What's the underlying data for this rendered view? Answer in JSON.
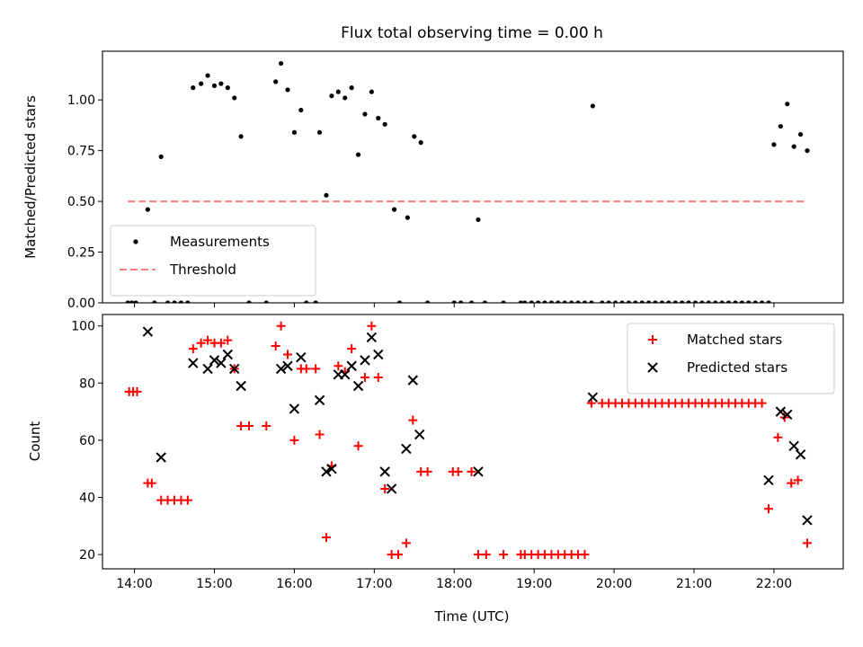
{
  "chart_data": [
    {
      "type": "scatter",
      "title": "Flux total observing time = 0.00 h",
      "xlabel": "",
      "ylabel": "Matched/Predicted stars",
      "xlim": [
        "13:36",
        "22:52"
      ],
      "ylim": [
        0,
        1.24
      ],
      "x_ticks": [
        "14:00",
        "15:00",
        "16:00",
        "17:00",
        "18:00",
        "19:00",
        "20:00",
        "21:00",
        "22:00"
      ],
      "x_ticklabels_shown": false,
      "y_ticks": [
        "0.00",
        "0.25",
        "0.50",
        "0.75",
        "1.00"
      ],
      "grid": false,
      "legend_position": "lower-left",
      "series": [
        {
          "name": "Measurements",
          "marker": "dot",
          "color": "#000000",
          "points": [
            [
              "13:55",
              0
            ],
            [
              "13:58",
              0
            ],
            [
              "14:01",
              0
            ],
            [
              "14:10",
              0.46
            ],
            [
              "14:15",
              0
            ],
            [
              "14:20",
              0.72
            ],
            [
              "14:25",
              0
            ],
            [
              "14:30",
              0
            ],
            [
              "14:35",
              0
            ],
            [
              "14:40",
              0
            ],
            [
              "14:44",
              1.06
            ],
            [
              "14:50",
              1.08
            ],
            [
              "14:55",
              1.12
            ],
            [
              "15:00",
              1.07
            ],
            [
              "15:05",
              1.08
            ],
            [
              "15:10",
              1.06
            ],
            [
              "15:15",
              1.01
            ],
            [
              "15:20",
              0.82
            ],
            [
              "15:26",
              0
            ],
            [
              "15:39",
              0
            ],
            [
              "15:46",
              1.09
            ],
            [
              "15:50",
              1.18
            ],
            [
              "15:55",
              1.05
            ],
            [
              "16:00",
              0.84
            ],
            [
              "16:05",
              0.95
            ],
            [
              "16:09",
              0
            ],
            [
              "16:16",
              0
            ],
            [
              "16:19",
              0.84
            ],
            [
              "16:24",
              0.53
            ],
            [
              "16:28",
              1.02
            ],
            [
              "16:33",
              1.04
            ],
            [
              "16:38",
              1.01
            ],
            [
              "16:43",
              1.06
            ],
            [
              "16:48",
              0.73
            ],
            [
              "16:53",
              0.93
            ],
            [
              "16:58",
              1.04
            ],
            [
              "17:03",
              0.91
            ],
            [
              "17:08",
              0.88
            ],
            [
              "17:15",
              0.46
            ],
            [
              "17:19",
              0
            ],
            [
              "17:25",
              0.42
            ],
            [
              "17:30",
              0.82
            ],
            [
              "17:35",
              0.79
            ],
            [
              "17:40",
              0
            ],
            [
              "18:00",
              0
            ],
            [
              "18:05",
              0
            ],
            [
              "18:13",
              0
            ],
            [
              "18:18",
              0.41
            ],
            [
              "18:23",
              0
            ],
            [
              "18:37",
              0
            ],
            [
              "18:50",
              0
            ],
            [
              "18:53",
              0
            ],
            [
              "18:58",
              0
            ],
            [
              "19:03",
              0
            ],
            [
              "19:08",
              0
            ],
            [
              "19:13",
              0
            ],
            [
              "19:18",
              0
            ],
            [
              "19:23",
              0
            ],
            [
              "19:28",
              0
            ],
            [
              "19:33",
              0
            ],
            [
              "19:38",
              0
            ],
            [
              "19:43",
              0
            ],
            [
              "19:44",
              0.97
            ],
            [
              "19:51",
              0
            ],
            [
              "19:56",
              0
            ],
            [
              "20:01",
              0
            ],
            [
              "20:06",
              0
            ],
            [
              "20:11",
              0
            ],
            [
              "20:16",
              0
            ],
            [
              "20:21",
              0
            ],
            [
              "20:26",
              0
            ],
            [
              "20:31",
              0
            ],
            [
              "20:36",
              0
            ],
            [
              "20:41",
              0
            ],
            [
              "20:46",
              0
            ],
            [
              "20:51",
              0
            ],
            [
              "20:56",
              0
            ],
            [
              "21:01",
              0
            ],
            [
              "21:06",
              0
            ],
            [
              "21:11",
              0
            ],
            [
              "21:16",
              0
            ],
            [
              "21:21",
              0
            ],
            [
              "21:26",
              0
            ],
            [
              "21:31",
              0
            ],
            [
              "21:36",
              0
            ],
            [
              "21:41",
              0
            ],
            [
              "21:46",
              0
            ],
            [
              "21:51",
              0
            ],
            [
              "21:56",
              0
            ],
            [
              "22:00",
              0.78
            ],
            [
              "22:05",
              0.87
            ],
            [
              "22:10",
              0.98
            ],
            [
              "22:15",
              0.77
            ],
            [
              "22:20",
              0.83
            ],
            [
              "22:25",
              0.75
            ]
          ]
        },
        {
          "name": "Threshold",
          "style": "dashed-line",
          "color": "#ff7f7f",
          "points": [
            [
              "13:55",
              0.5
            ],
            [
              "22:25",
              0.5
            ]
          ]
        }
      ]
    },
    {
      "type": "scatter",
      "title": "",
      "xlabel": "Time (UTC)",
      "ylabel": "Count",
      "xlim": [
        "13:36",
        "22:52"
      ],
      "ylim": [
        15,
        104
      ],
      "x_ticks": [
        "14:00",
        "15:00",
        "16:00",
        "17:00",
        "18:00",
        "19:00",
        "20:00",
        "21:00",
        "22:00"
      ],
      "y_ticks": [
        "20",
        "40",
        "60",
        "80",
        "100"
      ],
      "grid": false,
      "legend_position": "upper-right",
      "series": [
        {
          "name": "Matched stars",
          "marker": "plus",
          "color": "#ff0000",
          "points": [
            [
              "13:56",
              77
            ],
            [
              "13:59",
              77
            ],
            [
              "14:02",
              77
            ],
            [
              "14:10",
              45
            ],
            [
              "14:13",
              45
            ],
            [
              "14:20",
              39
            ],
            [
              "14:25",
              39
            ],
            [
              "14:30",
              39
            ],
            [
              "14:35",
              39
            ],
            [
              "14:40",
              39
            ],
            [
              "14:44",
              92
            ],
            [
              "14:50",
              94
            ],
            [
              "14:55",
              95
            ],
            [
              "15:00",
              94
            ],
            [
              "15:05",
              94
            ],
            [
              "15:10",
              95
            ],
            [
              "15:15",
              85
            ],
            [
              "15:20",
              65
            ],
            [
              "15:26",
              65
            ],
            [
              "15:39",
              65
            ],
            [
              "15:46",
              93
            ],
            [
              "15:50",
              100
            ],
            [
              "15:55",
              90
            ],
            [
              "16:00",
              60
            ],
            [
              "16:05",
              85
            ],
            [
              "16:09",
              85
            ],
            [
              "16:16",
              85
            ],
            [
              "16:19",
              62
            ],
            [
              "16:24",
              26
            ],
            [
              "16:28",
              51
            ],
            [
              "16:33",
              86
            ],
            [
              "16:38",
              84
            ],
            [
              "16:43",
              92
            ],
            [
              "16:48",
              58
            ],
            [
              "16:53",
              82
            ],
            [
              "16:58",
              100
            ],
            [
              "17:03",
              82
            ],
            [
              "17:08",
              43
            ],
            [
              "17:13",
              20
            ],
            [
              "17:18",
              20
            ],
            [
              "17:24",
              24
            ],
            [
              "17:29",
              67
            ],
            [
              "17:35",
              49
            ],
            [
              "17:40",
              49
            ],
            [
              "17:59",
              49
            ],
            [
              "18:03",
              49
            ],
            [
              "18:13",
              49
            ],
            [
              "18:18",
              20
            ],
            [
              "18:24",
              20
            ],
            [
              "18:37",
              20
            ],
            [
              "18:50",
              20
            ],
            [
              "18:53",
              20
            ],
            [
              "18:58",
              20
            ],
            [
              "19:03",
              20
            ],
            [
              "19:08",
              20
            ],
            [
              "19:13",
              20
            ],
            [
              "19:18",
              20
            ],
            [
              "19:23",
              20
            ],
            [
              "19:28",
              20
            ],
            [
              "19:33",
              20
            ],
            [
              "19:38",
              20
            ],
            [
              "19:43",
              73
            ],
            [
              "19:51",
              73
            ],
            [
              "19:56",
              73
            ],
            [
              "20:01",
              73
            ],
            [
              "20:06",
              73
            ],
            [
              "20:11",
              73
            ],
            [
              "20:16",
              73
            ],
            [
              "20:21",
              73
            ],
            [
              "20:26",
              73
            ],
            [
              "20:31",
              73
            ],
            [
              "20:36",
              73
            ],
            [
              "20:41",
              73
            ],
            [
              "20:46",
              73
            ],
            [
              "20:51",
              73
            ],
            [
              "20:56",
              73
            ],
            [
              "21:01",
              73
            ],
            [
              "21:06",
              73
            ],
            [
              "21:11",
              73
            ],
            [
              "21:16",
              73
            ],
            [
              "21:21",
              73
            ],
            [
              "21:26",
              73
            ],
            [
              "21:31",
              73
            ],
            [
              "21:36",
              73
            ],
            [
              "21:41",
              73
            ],
            [
              "21:46",
              73
            ],
            [
              "21:51",
              73
            ],
            [
              "21:56",
              36
            ],
            [
              "22:03",
              61
            ],
            [
              "22:08",
              68
            ],
            [
              "22:13",
              45
            ],
            [
              "22:18",
              46
            ],
            [
              "22:25",
              24
            ]
          ]
        },
        {
          "name": "Predicted stars",
          "marker": "x",
          "color": "#000000",
          "points": [
            [
              "14:10",
              98
            ],
            [
              "14:20",
              54
            ],
            [
              "14:44",
              87
            ],
            [
              "14:55",
              85
            ],
            [
              "15:00",
              88
            ],
            [
              "15:05",
              87
            ],
            [
              "15:10",
              90
            ],
            [
              "15:15",
              85
            ],
            [
              "15:20",
              79
            ],
            [
              "15:50",
              85
            ],
            [
              "15:55",
              86
            ],
            [
              "16:00",
              71
            ],
            [
              "16:05",
              89
            ],
            [
              "16:19",
              74
            ],
            [
              "16:24",
              49
            ],
            [
              "16:28",
              50
            ],
            [
              "16:33",
              83
            ],
            [
              "16:38",
              83
            ],
            [
              "16:43",
              86
            ],
            [
              "16:48",
              79
            ],
            [
              "16:53",
              88
            ],
            [
              "16:58",
              96
            ],
            [
              "17:03",
              90
            ],
            [
              "17:08",
              49
            ],
            [
              "17:13",
              43
            ],
            [
              "17:24",
              57
            ],
            [
              "17:29",
              81
            ],
            [
              "17:34",
              62
            ],
            [
              "18:18",
              49
            ],
            [
              "19:44",
              75
            ],
            [
              "21:56",
              46
            ],
            [
              "22:05",
              70
            ],
            [
              "22:10",
              69
            ],
            [
              "22:15",
              58
            ],
            [
              "22:20",
              55
            ],
            [
              "22:25",
              32
            ]
          ]
        }
      ]
    }
  ]
}
